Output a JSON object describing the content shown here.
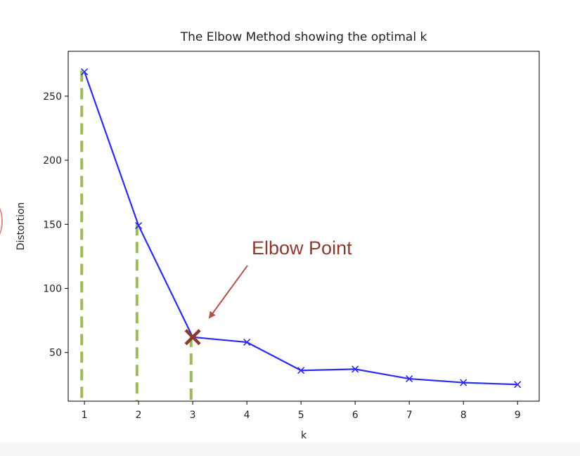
{
  "chart_data": {
    "type": "line",
    "title": "The Elbow Method showing the optimal k",
    "xlabel": "k",
    "ylabel": "Distortion",
    "xlim": [
      0.7,
      9.4
    ],
    "ylim": [
      12,
      285
    ],
    "xticks": [
      1,
      2,
      3,
      4,
      5,
      6,
      7,
      8,
      9
    ],
    "yticks": [
      50,
      100,
      150,
      200,
      250
    ],
    "grid": false,
    "series": [
      {
        "color": "#2b2bf2",
        "marker": "x",
        "x": [
          1,
          2,
          3,
          4,
          5,
          6,
          7,
          8,
          9
        ],
        "y": [
          269,
          149,
          62,
          58,
          36,
          37,
          29.5,
          26.5,
          25
        ]
      }
    ],
    "guide_lines": {
      "color": "#9bbb59",
      "style": "dashed",
      "x": [
        0.95,
        1.97,
        2.97
      ],
      "y_top": [
        270,
        150,
        63
      ]
    },
    "annotation": {
      "text": "Elbow Point",
      "color": "#8b3a32",
      "point": [
        3,
        62
      ],
      "marker": "X"
    }
  }
}
